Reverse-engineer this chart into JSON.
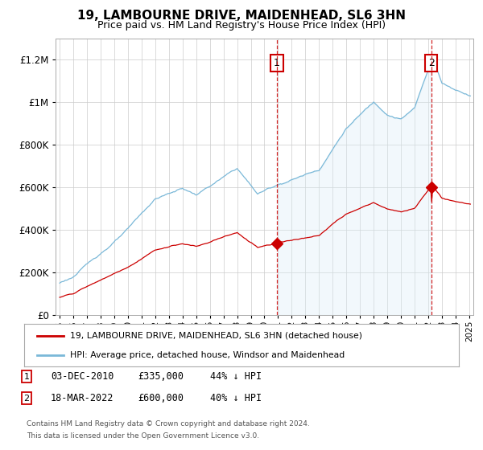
{
  "title": "19, LAMBOURNE DRIVE, MAIDENHEAD, SL6 3HN",
  "subtitle": "Price paid vs. HM Land Registry's House Price Index (HPI)",
  "hpi_label": "HPI: Average price, detached house, Windsor and Maidenhead",
  "property_label": "19, LAMBOURNE DRIVE, MAIDENHEAD, SL6 3HN (detached house)",
  "footnote": "Contains HM Land Registry data © Crown copyright and database right 2024.\nThis data is licensed under the Open Government Licence v3.0.",
  "transaction1_date": "03-DEC-2010",
  "transaction1_price": "£335,000",
  "transaction1_hpi": "44% ↓ HPI",
  "transaction1_x": 2010.92,
  "transaction2_date": "18-MAR-2022",
  "transaction2_price": "£600,000",
  "transaction2_hpi": "40% ↓ HPI",
  "transaction2_x": 2022.21,
  "transaction1_y": 335000,
  "transaction2_y": 600000,
  "hpi_color": "#7ab8d8",
  "hpi_fill_color": "#daedf7",
  "price_color": "#cc0000",
  "vline_color": "#cc0000",
  "marker_color": "#cc0000",
  "background_color": "#ffffff",
  "grid_color": "#cccccc",
  "ylim": [
    0,
    1300000
  ],
  "xlim_start": 1994.7,
  "xlim_end": 2025.3
}
